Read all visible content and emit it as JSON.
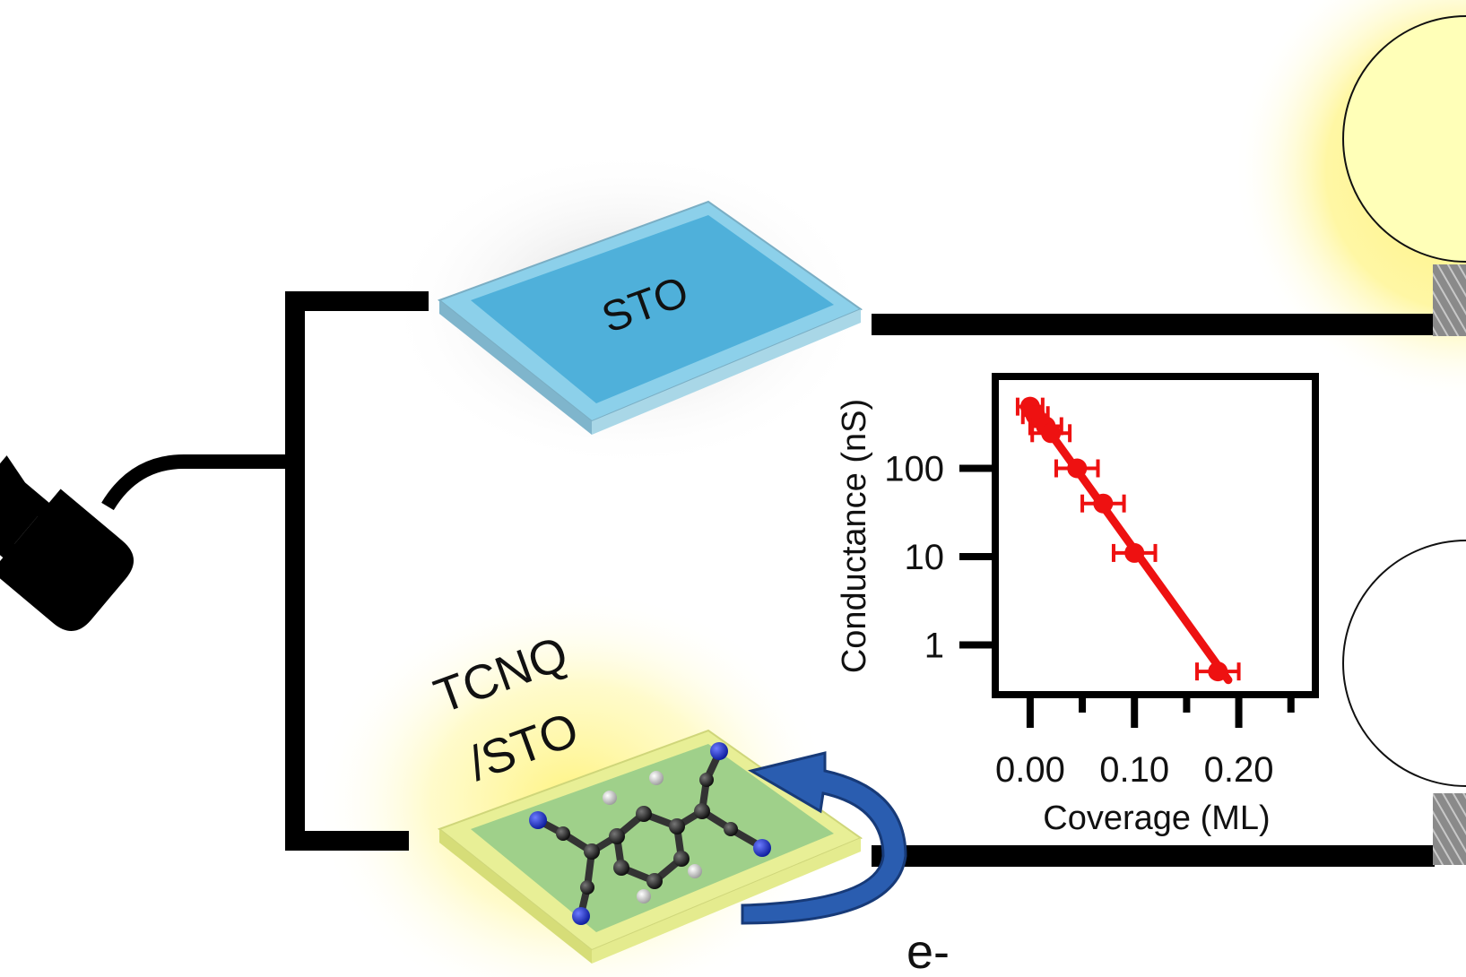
{
  "labels": {
    "sto_plate": "STO",
    "tcnq_line1": "TCNQ",
    "tcnq_line2": "/STO",
    "electron": "e-"
  },
  "colors": {
    "wire": "#000000",
    "sto_blue": "#5bb8dc",
    "tcnq_green": "#9fd08a",
    "glow": "#fff37a",
    "arrow": "#1f4fa0",
    "data": "#ee1111"
  },
  "chart_data": {
    "type": "scatter",
    "title": "",
    "xlabel": "Coverage (ML)",
    "ylabel": "Conductance (nS)",
    "xlim": [
      -0.03,
      0.27
    ],
    "ylim": [
      0.3,
      1000
    ],
    "yscale": "log",
    "x_ticks": [
      0.0,
      0.1,
      0.2
    ],
    "x_tick_labels": [
      "0.00",
      "0.10",
      "0.20"
    ],
    "y_ticks": [
      1,
      10,
      100
    ],
    "y_tick_labels": [
      "1",
      "10",
      "100"
    ],
    "series": [
      {
        "name": "TCNQ/STO",
        "x": [
          0.0,
          0.005,
          0.015,
          0.02,
          0.045,
          0.07,
          0.1,
          0.18
        ],
        "y": [
          500,
          400,
          300,
          250,
          100,
          40,
          11,
          0.5
        ],
        "xerr": [
          0.012,
          0.012,
          0.015,
          0.018,
          0.02,
          0.02,
          0.02,
          0.02
        ]
      }
    ],
    "fit_line": {
      "x": [
        0.0,
        0.19
      ],
      "y": [
        520,
        0.4
      ]
    }
  }
}
